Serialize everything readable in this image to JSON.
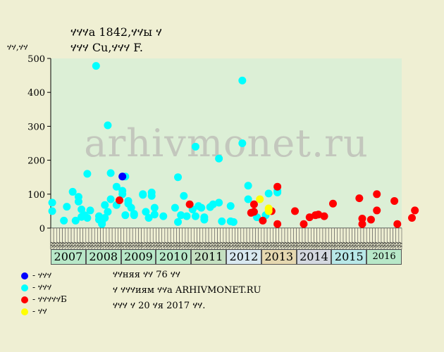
{
  "header": {
    "title_line1": "ሃሃሃа 1842,ሃሃы ሃ",
    "title_line2": "ሃሃሃ Cu,ሃሃሃ F.",
    "ylabel": "ሃሃ,ሃሃ"
  },
  "watermark": "arhivmonet.ru",
  "legend": {
    "items": [
      {
        "color": "#0000ff",
        "label": "- ሃሃሃ"
      },
      {
        "color": "#00ffff",
        "label": "- ሃሃሃ"
      },
      {
        "color": "#ff0000",
        "label": "- ሃሃሃሃሃБ"
      },
      {
        "color": "#ffff00",
        "label": "- ሃሃ"
      }
    ]
  },
  "notes": {
    "line1": "ሃሃняя ሃሃ 76 ሃሃ",
    "line2": "ሃ ሃሃሃиям ሃሃа ARHIVMONET.RU",
    "line3": "ሃሃሃ ሃ 20 ሃя 2017 ሃሃ."
  },
  "colors": {
    "background": "#efefd3",
    "plot_bg": "#dcefd6",
    "vip": "#0000ff",
    "main": "#00ffff",
    "auction": "#ff0000",
    "other": "#ffff00"
  },
  "chart_data": {
    "type": "scatter",
    "ylim": [
      0,
      500
    ],
    "yticks": [
      0,
      100,
      200,
      300,
      400,
      500
    ],
    "x_unit": "month index (0 = first month of 2007)",
    "years": [
      {
        "label": "2007",
        "color": "#b8e8c8"
      },
      {
        "label": "2008",
        "color": "#b8e8c8"
      },
      {
        "label": "2009",
        "color": "#b8e8c8"
      },
      {
        "label": "2010",
        "color": "#b8e8c8"
      },
      {
        "label": "2011",
        "color": "#c4e0c0"
      },
      {
        "label": "2012",
        "color": "#d8e8f0"
      },
      {
        "label": "2013",
        "color": "#e6d8b0"
      },
      {
        "label": "2014",
        "color": "#d4d8e0"
      },
      {
        "label": "2015",
        "color": "#b8e8e8"
      },
      {
        "label": "2016",
        "color": "#b8e8c8"
      }
    ],
    "month_labels": [
      "ሃሃ",
      "ሃሃ",
      "ሃሃ",
      "ሃሃ",
      "ሃሃ",
      "ሃሃ",
      "ሃሃ",
      "ሃሃ",
      "ሃሃ",
      "ሃሃ",
      "ሃሃ",
      "ሃሃ"
    ],
    "series": [
      {
        "color_key": "main",
        "points": [
          [
            0,
            75
          ],
          [
            0,
            50
          ],
          [
            4,
            22
          ],
          [
            5,
            63
          ],
          [
            7,
            107
          ],
          [
            8,
            22
          ],
          [
            9,
            92
          ],
          [
            9,
            78
          ],
          [
            10,
            55
          ],
          [
            10,
            33
          ],
          [
            11,
            38
          ],
          [
            12,
            160
          ],
          [
            12,
            30
          ],
          [
            13,
            52
          ],
          [
            15,
            478
          ],
          [
            16,
            35
          ],
          [
            16,
            25
          ],
          [
            17,
            12
          ],
          [
            17,
            18
          ],
          [
            18,
            68
          ],
          [
            18,
            30
          ],
          [
            19,
            303
          ],
          [
            19,
            48
          ],
          [
            20,
            85
          ],
          [
            20,
            162
          ],
          [
            22,
            122
          ],
          [
            22,
            68
          ],
          [
            24,
            100
          ],
          [
            24,
            110
          ],
          [
            25,
            152
          ],
          [
            25,
            38
          ],
          [
            26,
            80
          ],
          [
            26,
            72
          ],
          [
            27,
            60
          ],
          [
            28,
            42
          ],
          [
            28,
            38
          ],
          [
            31,
            100
          ],
          [
            31,
            98
          ],
          [
            32,
            48
          ],
          [
            33,
            30
          ],
          [
            34,
            105
          ],
          [
            34,
            95
          ],
          [
            35,
            60
          ],
          [
            35,
            40
          ],
          [
            38,
            35
          ],
          [
            42,
            60
          ],
          [
            43,
            150
          ],
          [
            43,
            18
          ],
          [
            44,
            38
          ],
          [
            45,
            95
          ],
          [
            46,
            35
          ],
          [
            48,
            55
          ],
          [
            49,
            240
          ],
          [
            49,
            35
          ],
          [
            50,
            65
          ],
          [
            51,
            60
          ],
          [
            52,
            32
          ],
          [
            52,
            25
          ],
          [
            54,
            62
          ],
          [
            55,
            70
          ],
          [
            57,
            205
          ],
          [
            57,
            75
          ],
          [
            58,
            20
          ],
          [
            61,
            20
          ],
          [
            61,
            65
          ],
          [
            62,
            18
          ],
          [
            65,
            435
          ],
          [
            65,
            250
          ],
          [
            67,
            125
          ],
          [
            67,
            85
          ],
          [
            70,
            32
          ],
          [
            73,
            38
          ],
          [
            74,
            102
          ],
          [
            77,
            110
          ],
          [
            77,
            105
          ]
        ]
      },
      {
        "color_key": "vip",
        "points": [
          [
            24,
            152
          ]
        ]
      },
      {
        "color_key": "auction",
        "points": [
          [
            23,
            82
          ],
          [
            47,
            70
          ],
          [
            68,
            45
          ],
          [
            69,
            70
          ],
          [
            69,
            48
          ],
          [
            72,
            22
          ],
          [
            75,
            50
          ],
          [
            77,
            122
          ],
          [
            77,
            12
          ],
          [
            83,
            50
          ],
          [
            86,
            12
          ],
          [
            88,
            32
          ],
          [
            90,
            38
          ],
          [
            91,
            40
          ],
          [
            93,
            35
          ],
          [
            96,
            72
          ],
          [
            105,
            88
          ],
          [
            106,
            28
          ],
          [
            106,
            12
          ],
          [
            109,
            25
          ],
          [
            111,
            100
          ],
          [
            111,
            52
          ],
          [
            117,
            80
          ],
          [
            118,
            12
          ],
          [
            123,
            30
          ],
          [
            124,
            52
          ]
        ]
      },
      {
        "color_key": "other",
        "points": [
          [
            71,
            85
          ],
          [
            74,
            58
          ],
          [
            74,
            50
          ]
        ]
      }
    ]
  }
}
